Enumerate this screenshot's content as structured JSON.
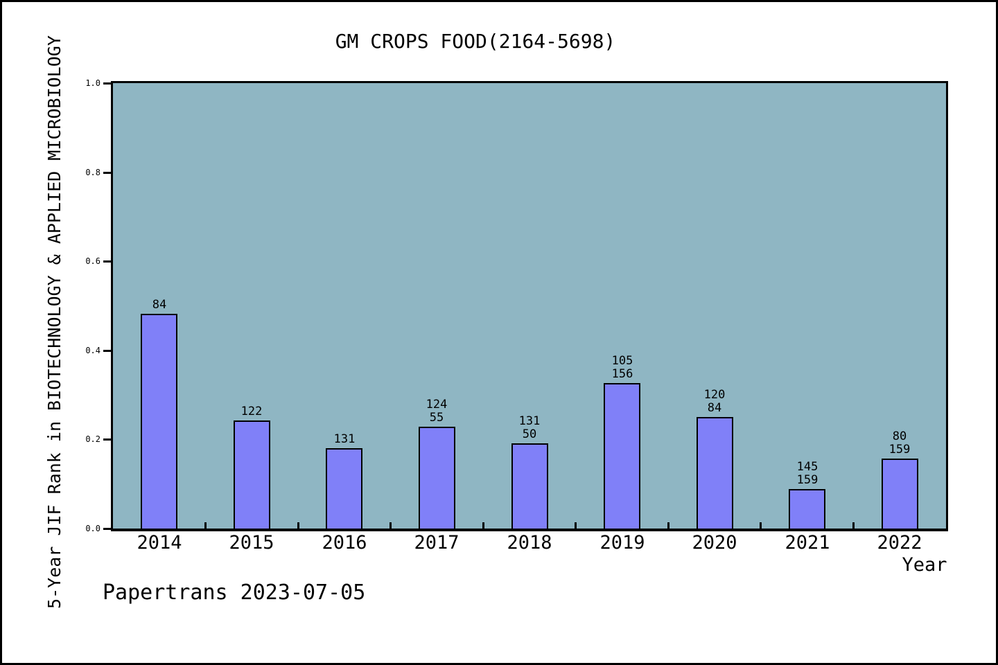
{
  "chart_data": {
    "type": "bar",
    "title": "GM CROPS FOOD(2164-5698)",
    "xlabel": "Year",
    "ylabel": "5-Year JIF Rank in BIOTECHNOLOGY & APPLIED MICROBIOLOGY",
    "annotation": "Papertrans 2023-07-05",
    "categories": [
      "2014",
      "2015",
      "2016",
      "2017",
      "2018",
      "2019",
      "2020",
      "2021",
      "2022"
    ],
    "bar_heights_fraction": [
      0.482,
      0.243,
      0.18,
      0.229,
      0.191,
      0.327,
      0.25,
      0.089,
      0.157
    ],
    "bar_labels": [
      [
        "84"
      ],
      [
        "122"
      ],
      [
        "131"
      ],
      [
        "124",
        "55"
      ],
      [
        "131",
        "50"
      ],
      [
        "105",
        "156"
      ],
      [
        "120",
        "84"
      ],
      [
        "145",
        "159"
      ],
      [
        "80",
        "159"
      ]
    ],
    "y_ticks": [
      "0.0",
      "0.2",
      "0.4",
      "0.6",
      "0.8",
      "1.0"
    ],
    "ylim": [
      0.0,
      1.0
    ],
    "grid": false,
    "legend": "none",
    "colors": {
      "bar_fill": "#8080f8",
      "bar_edge": "#000000",
      "plot_background": "#8fb6c3",
      "page_background": "#ffffff",
      "text": "#000000"
    }
  }
}
